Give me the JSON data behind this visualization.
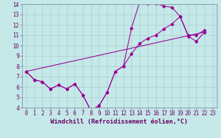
{
  "xlabel": "Windchill (Refroidissement éolien,°C)",
  "xlim": [
    -0.5,
    23.5
  ],
  "ylim": [
    4,
    14
  ],
  "xticks": [
    0,
    1,
    2,
    3,
    4,
    5,
    6,
    7,
    8,
    9,
    10,
    11,
    12,
    13,
    14,
    15,
    16,
    17,
    18,
    19,
    20,
    21,
    22,
    23
  ],
  "yticks": [
    4,
    5,
    6,
    7,
    8,
    9,
    10,
    11,
    12,
    13,
    14
  ],
  "bg_color": "#c5e8e8",
  "line_color": "#990099",
  "grid_color": "#aacccc",
  "line1_x": [
    0,
    1,
    2,
    3,
    4,
    5,
    6,
    7,
    8,
    9,
    10,
    11,
    12,
    13,
    14,
    15,
    16,
    17,
    18,
    19,
    20,
    21,
    22
  ],
  "line1_y": [
    7.5,
    6.7,
    6.5,
    5.8,
    6.2,
    5.8,
    6.3,
    5.2,
    3.7,
    4.2,
    5.5,
    7.5,
    8.0,
    11.7,
    14.2,
    14.1,
    14.1,
    13.8,
    13.7,
    12.8,
    11.0,
    11.0,
    11.5
  ],
  "line2_x": [
    0,
    1,
    2,
    3,
    4,
    5,
    6,
    7,
    8,
    9,
    10,
    11,
    12,
    13,
    14,
    15,
    16,
    17,
    18,
    19,
    20,
    21,
    22
  ],
  "line2_y": [
    7.5,
    6.7,
    6.5,
    5.8,
    6.2,
    5.8,
    6.3,
    5.2,
    3.7,
    4.2,
    5.5,
    7.5,
    8.0,
    9.2,
    10.2,
    10.7,
    11.0,
    11.6,
    12.1,
    12.8,
    10.9,
    10.4,
    11.3
  ],
  "line3_x": [
    0,
    22
  ],
  "line3_y": [
    7.5,
    11.3
  ],
  "font_family": "monospace",
  "tick_fontsize": 5.5,
  "label_fontsize": 6.5
}
